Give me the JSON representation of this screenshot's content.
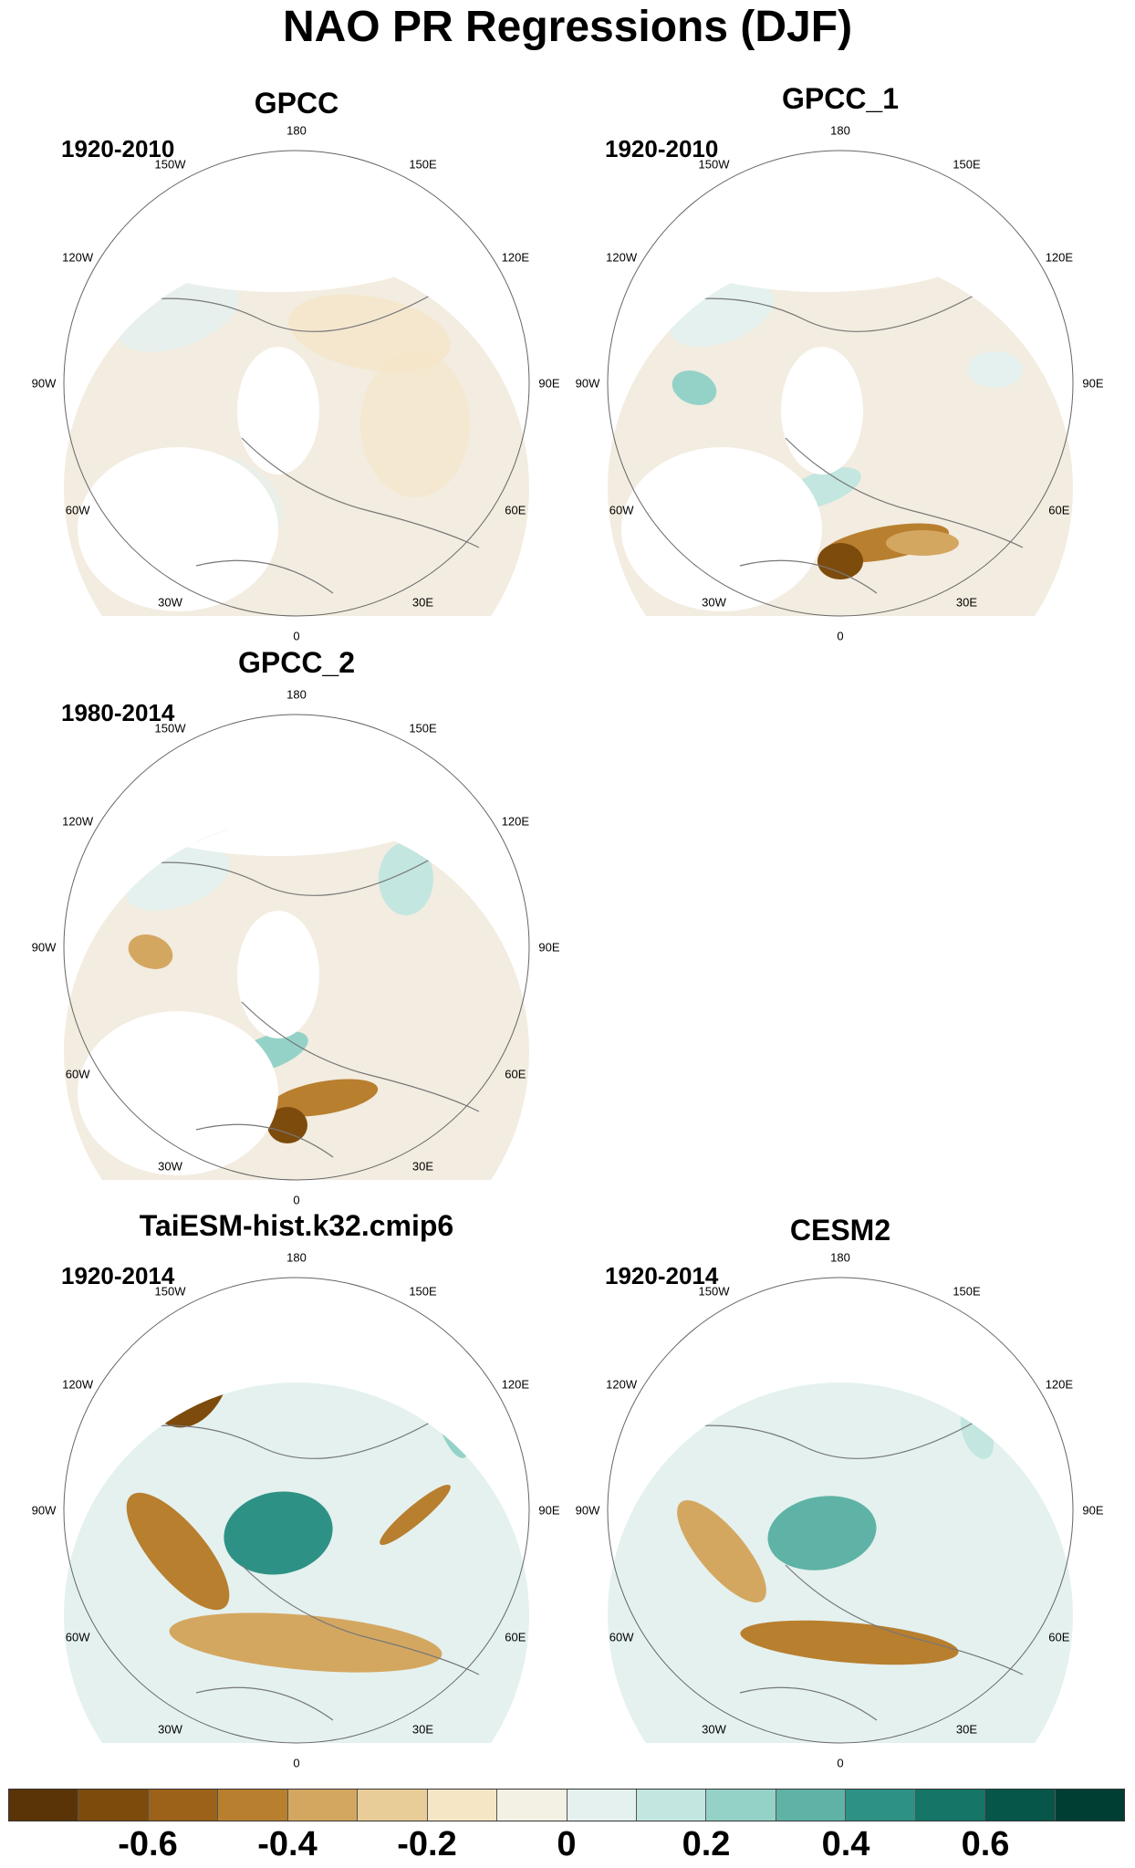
{
  "title": "NAO PR Regressions (DJF)",
  "panels": [
    {
      "name": "GPCC",
      "period": "1920-2010"
    },
    {
      "name": "GPCC_1",
      "period": "1920-2010"
    },
    {
      "name": "GPCC_2",
      "period": "1980-2014"
    },
    {
      "name": "TaiESM-hist.k32.cmip6",
      "period": "1920-2014"
    },
    {
      "name": "CESM2",
      "period": "1920-2014"
    }
  ],
  "lon_labels": [
    "180",
    "150E",
    "120E",
    "90E",
    "60E",
    "30E",
    "0",
    "30W",
    "60W",
    "90W",
    "120W",
    "150W"
  ],
  "colorbar": {
    "colors": [
      "#5a3407",
      "#7d4b0c",
      "#9c6219",
      "#b87f2f",
      "#d4a761",
      "#e9cd98",
      "#f5e6c6",
      "#f3f0e4",
      "#e4f1ef",
      "#c3e6e0",
      "#94d2c8",
      "#5fb3a6",
      "#2d9285",
      "#157567",
      "#06564a",
      "#003e33"
    ],
    "ticks": [
      "-0.6",
      "-0.4",
      "-0.2",
      "0",
      "0.2",
      "0.4",
      "0.6"
    ]
  }
}
